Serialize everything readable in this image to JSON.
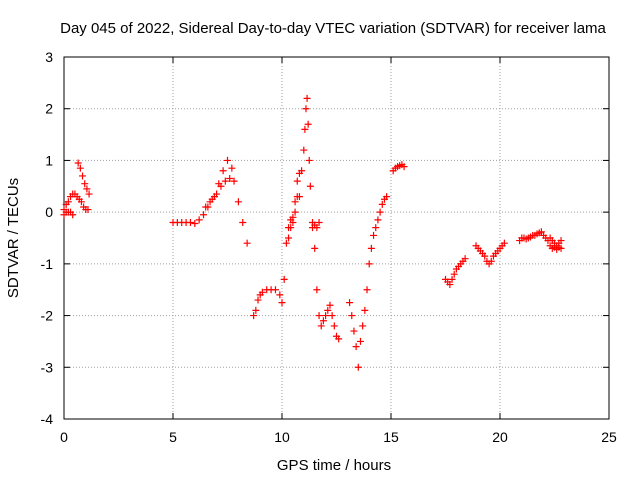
{
  "chart_data": {
    "type": "scatter",
    "title": "Day 045 of 2022, Sidereal Day-to-day VTEC variation (SDTVAR) for receiver lama",
    "xlabel": "GPS time / hours",
    "ylabel": "SDTVAR / TECUs",
    "xlim": [
      0,
      25
    ],
    "ylim": [
      -4,
      3
    ],
    "xticks": [
      0,
      5,
      10,
      15,
      20,
      25
    ],
    "yticks": [
      -4,
      -3,
      -2,
      -1,
      0,
      1,
      2,
      3
    ],
    "grid": true,
    "marker": "plus",
    "colors": {
      "series": "#ff0000",
      "grid": "#a0a0a0",
      "axis": "#000000"
    },
    "segments": [
      {
        "x": [
          0.0,
          0.1,
          0.2,
          0.3,
          0.4,
          0.5,
          0.6,
          0.7,
          0.8,
          0.9,
          1.0,
          1.1
        ],
        "y": [
          0.05,
          0.15,
          0.2,
          0.3,
          0.35,
          0.35,
          0.3,
          0.25,
          0.2,
          0.1,
          0.05,
          0.05
        ]
      },
      {
        "x": [
          0.0,
          0.1,
          0.2,
          0.3,
          0.4
        ],
        "y": [
          -0.05,
          0.0,
          0.0,
          0.0,
          -0.05
        ]
      },
      {
        "x": [
          0.65,
          0.75,
          0.85,
          0.95,
          1.05,
          1.15
        ],
        "y": [
          0.95,
          0.85,
          0.7,
          0.55,
          0.45,
          0.35
        ]
      },
      {
        "x": [
          5.0,
          5.2,
          5.4,
          5.6,
          5.8,
          6.0,
          6.2,
          6.4,
          6.6,
          6.8,
          7.0,
          7.2,
          7.4,
          7.6,
          7.8,
          8.0,
          8.2,
          8.4
        ],
        "y": [
          -0.2,
          -0.2,
          -0.2,
          -0.2,
          -0.2,
          -0.22,
          -0.15,
          -0.05,
          0.1,
          0.25,
          0.35,
          0.5,
          0.6,
          0.65,
          0.6,
          0.2,
          -0.2,
          -0.6
        ]
      },
      {
        "x": [
          6.5,
          6.7,
          6.9,
          7.1,
          7.3,
          7.5,
          7.7
        ],
        "y": [
          0.1,
          0.2,
          0.3,
          0.55,
          0.8,
          1.0,
          0.85
        ]
      },
      {
        "x": [
          8.7,
          8.8,
          8.9,
          9.0,
          9.1,
          9.3,
          9.5,
          9.7,
          9.9,
          10.0,
          10.1,
          10.2,
          10.3,
          10.4,
          10.5,
          10.6,
          10.7,
          10.8,
          10.9,
          11.0,
          11.05,
          11.1,
          11.15,
          11.2,
          11.25,
          11.3,
          11.4,
          11.5,
          11.6,
          11.7,
          11.8,
          11.9,
          12.0,
          12.1,
          12.2,
          12.3,
          12.4,
          12.5,
          12.6
        ],
        "y": [
          -2.0,
          -1.9,
          -1.7,
          -1.6,
          -1.55,
          -1.5,
          -1.5,
          -1.5,
          -1.6,
          -1.75,
          -1.3,
          -0.6,
          -0.3,
          -0.15,
          -0.1,
          0.2,
          0.6,
          0.3,
          0.8,
          1.2,
          1.6,
          2.0,
          2.2,
          1.7,
          1.0,
          0.5,
          -0.3,
          -0.7,
          -1.5,
          -2.0,
          -2.2,
          -2.1,
          -2.0,
          -1.9,
          -1.8,
          -2.0,
          -2.2,
          -2.4,
          -2.45
        ]
      },
      {
        "x": [
          10.3,
          10.4,
          10.5,
          10.6,
          10.7,
          10.8
        ],
        "y": [
          -0.5,
          -0.3,
          -0.2,
          0.0,
          0.3,
          0.75
        ]
      },
      {
        "x": [
          11.4,
          11.5,
          11.6,
          11.7
        ],
        "y": [
          -0.2,
          -0.25,
          -0.3,
          -0.2
        ]
      },
      {
        "x": [
          13.1,
          13.2,
          13.3,
          13.4,
          13.5,
          13.6,
          13.7,
          13.8,
          13.9,
          14.0,
          14.1,
          14.2,
          14.3,
          14.4,
          14.5,
          14.6,
          14.7,
          14.8
        ],
        "y": [
          -1.75,
          -2.0,
          -2.3,
          -2.6,
          -3.0,
          -2.5,
          -2.2,
          -1.9,
          -1.5,
          -1.0,
          -0.7,
          -0.45,
          -0.3,
          -0.15,
          0.0,
          0.15,
          0.25,
          0.3
        ]
      },
      {
        "x": [
          15.1,
          15.2,
          15.3,
          15.4,
          15.5,
          15.6
        ],
        "y": [
          0.8,
          0.85,
          0.88,
          0.9,
          0.92,
          0.88
        ]
      },
      {
        "x": [
          17.5,
          17.6,
          17.7,
          17.8,
          17.9,
          18.0,
          18.1,
          18.2,
          18.3,
          18.4
        ],
        "y": [
          -1.3,
          -1.35,
          -1.4,
          -1.3,
          -1.2,
          -1.1,
          -1.05,
          -1.0,
          -0.95,
          -0.9
        ]
      },
      {
        "x": [
          18.9,
          19.0,
          19.1,
          19.2,
          19.3,
          19.4,
          19.5,
          19.6,
          19.7,
          19.8,
          19.9,
          20.0,
          20.1,
          20.2
        ],
        "y": [
          -0.65,
          -0.7,
          -0.75,
          -0.8,
          -0.85,
          -0.95,
          -1.0,
          -0.95,
          -0.85,
          -0.8,
          -0.75,
          -0.7,
          -0.65,
          -0.6
        ]
      },
      {
        "x": [
          20.9,
          21.0,
          21.1,
          21.2,
          21.3,
          21.4,
          21.5,
          21.6,
          21.7,
          21.8,
          21.9,
          22.0,
          22.1,
          22.2,
          22.3,
          22.4,
          22.5,
          22.6,
          22.7,
          22.8
        ],
        "y": [
          -0.55,
          -0.5,
          -0.5,
          -0.52,
          -0.5,
          -0.48,
          -0.45,
          -0.45,
          -0.42,
          -0.4,
          -0.38,
          -0.45,
          -0.5,
          -0.55,
          -0.5,
          -0.55,
          -0.6,
          -0.65,
          -0.6,
          -0.55
        ]
      },
      {
        "x": [
          22.3,
          22.4,
          22.5,
          22.6,
          22.7,
          22.8
        ],
        "y": [
          -0.65,
          -0.7,
          -0.68,
          -0.72,
          -0.68,
          -0.7
        ]
      }
    ]
  }
}
